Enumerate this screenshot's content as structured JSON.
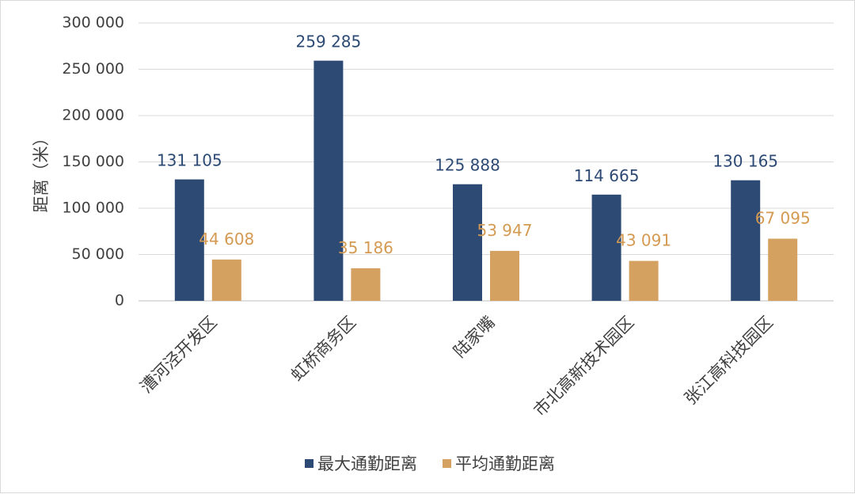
{
  "chart_data": {
    "type": "bar",
    "ylabel": "距离（米）",
    "xlabel": "",
    "ylim": [
      0,
      300000
    ],
    "yticks": [
      0,
      50000,
      100000,
      150000,
      200000,
      250000,
      300000
    ],
    "ytick_labels": [
      "0",
      "50 000",
      "100 000",
      "150 000",
      "200 000",
      "250 000",
      "300 000"
    ],
    "grid": true,
    "legend_position": "bottom",
    "categories": [
      "漕河泾开发区",
      "虹桥商务区",
      "陆家嘴",
      "市北高新技术园区",
      "张江高科技园区"
    ],
    "series": [
      {
        "name": "最大通勤距离",
        "color": "#2d4a74",
        "label_color": "#2d4a74",
        "values": [
          131105,
          259285,
          125888,
          114665,
          130165
        ],
        "labels": [
          "131 105",
          "259 285",
          "125 888",
          "114 665",
          "130 165"
        ]
      },
      {
        "name": "平均通勤距离",
        "color": "#d4a160",
        "label_color": "#d49a52",
        "values": [
          44608,
          35186,
          53947,
          43091,
          67095
        ],
        "labels": [
          "44 608",
          "35 186",
          "53 947",
          "43 091",
          "67 095"
        ]
      }
    ]
  }
}
